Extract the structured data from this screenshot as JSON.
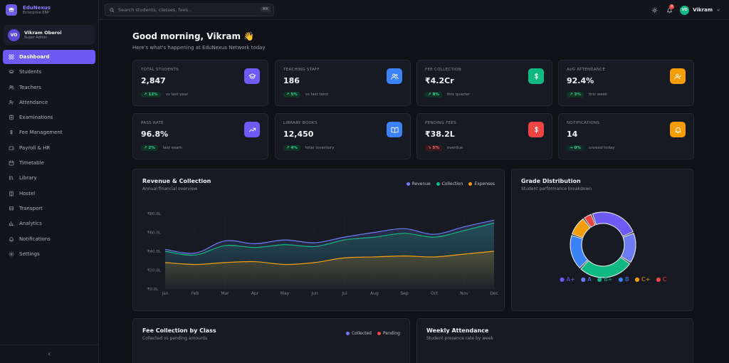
{
  "brand": {
    "name": "EduNexus",
    "subtitle": "Enterprise ERP"
  },
  "user": {
    "initials": "VO",
    "name": "Vikram Oberoi",
    "role": "Super Admin"
  },
  "nav": [
    {
      "label": "Dashboard",
      "icon": "dashboard-icon",
      "active": true
    },
    {
      "label": "Students",
      "icon": "graduation-cap-icon"
    },
    {
      "label": "Teachers",
      "icon": "users-icon"
    },
    {
      "label": "Attendance",
      "icon": "user-check-icon"
    },
    {
      "label": "Examinations",
      "icon": "clipboard-icon"
    },
    {
      "label": "Fee Management",
      "icon": "dollar-icon"
    },
    {
      "label": "Payroll & HR",
      "icon": "wallet-icon"
    },
    {
      "label": "Timetable",
      "icon": "calendar-icon"
    },
    {
      "label": "Library",
      "icon": "library-icon"
    },
    {
      "label": "Hostel",
      "icon": "building-icon"
    },
    {
      "label": "Transport",
      "icon": "bus-icon"
    },
    {
      "label": "Analytics",
      "icon": "bar-chart-icon"
    },
    {
      "label": "Notifications",
      "icon": "bell-icon"
    },
    {
      "label": "Settings",
      "icon": "gear-icon"
    }
  ],
  "search": {
    "placeholder": "Search students, classes, fees...",
    "shortcut": "⌘K"
  },
  "topbar": {
    "notification_count": "8",
    "user_initials": "VO",
    "user_name": "Vikram"
  },
  "greeting": {
    "title": "Good morning, Vikram 👋",
    "subtitle": "Here's what's happening at EduNexus Network today"
  },
  "stats": [
    {
      "label": "TOTAL STUDENTS",
      "value": "2,847",
      "trend": "↗ 12%",
      "trend_type": "up",
      "trend_sub": "vs last year",
      "icon": "graduation-cap-icon",
      "color": "#6d5bf5"
    },
    {
      "label": "TEACHING STAFF",
      "value": "186",
      "trend": "↗ 5%",
      "trend_type": "up",
      "trend_sub": "vs last term",
      "icon": "users-icon",
      "color": "#3b82f6"
    },
    {
      "label": "FEE COLLECTION",
      "value": "₹4.2Cr",
      "trend": "↗ 8%",
      "trend_type": "up",
      "trend_sub": "this quarter",
      "icon": "dollar-icon",
      "color": "#10b981"
    },
    {
      "label": "AVG ATTENDANCE",
      "value": "92.4%",
      "trend": "↗ 3%",
      "trend_type": "up",
      "trend_sub": "this week",
      "icon": "user-check-icon",
      "color": "#f59e0b"
    },
    {
      "label": "PASS RATE",
      "value": "96.8%",
      "trend": "↗ 2%",
      "trend_type": "up",
      "trend_sub": "last exam",
      "icon": "trending-up-icon",
      "color": "#6d5bf5"
    },
    {
      "label": "LIBRARY BOOKS",
      "value": "12,450",
      "trend": "↗ 4%",
      "trend_type": "up",
      "trend_sub": "total inventory",
      "icon": "book-open-icon",
      "color": "#3b82f6"
    },
    {
      "label": "PENDING FEES",
      "value": "₹38.2L",
      "trend": "↘ 5%",
      "trend_type": "down",
      "trend_sub": "overdue",
      "icon": "dollar-icon",
      "color": "#ef4444"
    },
    {
      "label": "NOTIFICATIONS",
      "value": "14",
      "trend": "→ 0%",
      "trend_type": "neutral",
      "trend_sub": "unread today",
      "icon": "bell-icon",
      "color": "#f59e0b"
    }
  ],
  "revenue_panel": {
    "title": "Revenue & Collection",
    "subtitle": "Annual financial overview"
  },
  "grade_panel": {
    "title": "Grade Distribution",
    "subtitle": "Student performance breakdown"
  },
  "fee_class_panel": {
    "title": "Fee Collection by Class",
    "subtitle": "Collected vs pending amounts",
    "legend": [
      {
        "name": "Collected",
        "color": "#6d7cf5"
      },
      {
        "name": "Pending",
        "color": "#ef4444"
      }
    ]
  },
  "weekly_panel": {
    "title": "Weekly Attendance",
    "subtitle": "Student presence rate by week"
  },
  "chart_data": [
    {
      "type": "area",
      "categories": [
        "Jan",
        "Feb",
        "Mar",
        "Apr",
        "May",
        "Jun",
        "Jul",
        "Aug",
        "Sep",
        "Oct",
        "Nov",
        "Dec"
      ],
      "yticks": [
        "₹0.0L",
        "₹20.0L",
        "₹40.0L",
        "₹60.0L",
        "₹80.0L"
      ],
      "ylim": [
        0,
        80
      ],
      "legend_position": "top-right",
      "series": [
        {
          "name": "Revenue",
          "color": "#6d7cf5",
          "values": [
            42,
            38,
            51,
            48,
            52,
            49,
            55,
            60,
            64,
            58,
            66,
            73
          ]
        },
        {
          "name": "Collection",
          "color": "#10b981",
          "values": [
            40,
            36,
            46,
            44,
            47,
            45,
            52,
            55,
            59,
            55,
            62,
            70
          ]
        },
        {
          "name": "Expenses",
          "color": "#f59e0b",
          "values": [
            28,
            26,
            28,
            29,
            26,
            28,
            33,
            34,
            35,
            34,
            37,
            40
          ]
        }
      ]
    },
    {
      "type": "pie",
      "categories": [
        "A+",
        "A",
        "B+",
        "B",
        "C+",
        "C"
      ],
      "colors": [
        "#6d5bf5",
        "#6d7cf5",
        "#10b981",
        "#3b82f6",
        "#f59e0b",
        "#ef4444"
      ],
      "values": [
        22,
        14,
        25,
        16,
        9,
        4
      ]
    }
  ]
}
